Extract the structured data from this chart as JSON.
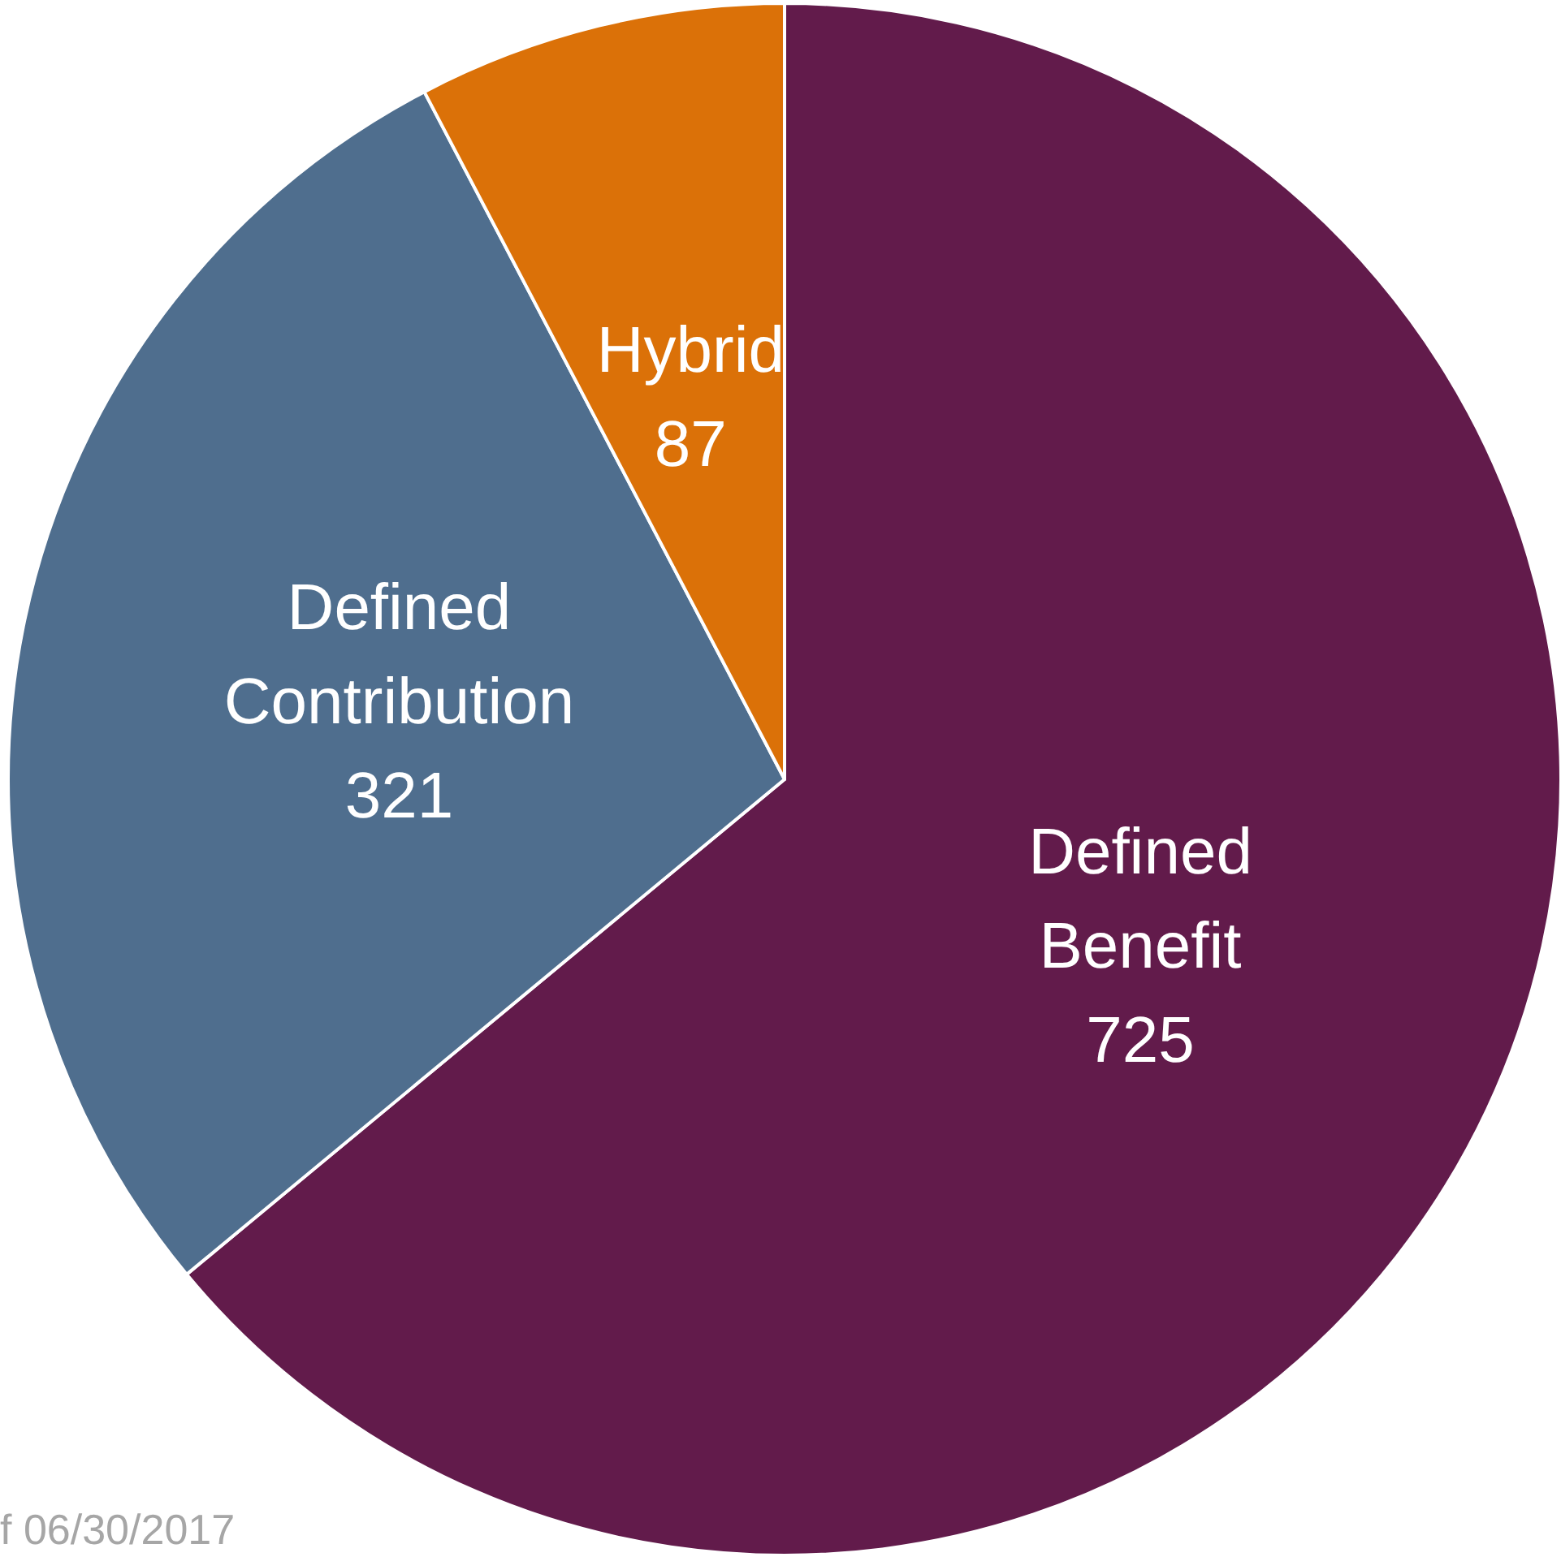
{
  "chart_data": {
    "type": "pie",
    "categories": [
      "Defined Benefit",
      "Defined Contribution",
      "Hybrid"
    ],
    "values": [
      725,
      321,
      87
    ],
    "colors": [
      "#621b4b",
      "#4f6e8e",
      "#db7108"
    ],
    "data_labels": true,
    "legend": false,
    "annotations": [
      "f 06/30/2017"
    ]
  }
}
